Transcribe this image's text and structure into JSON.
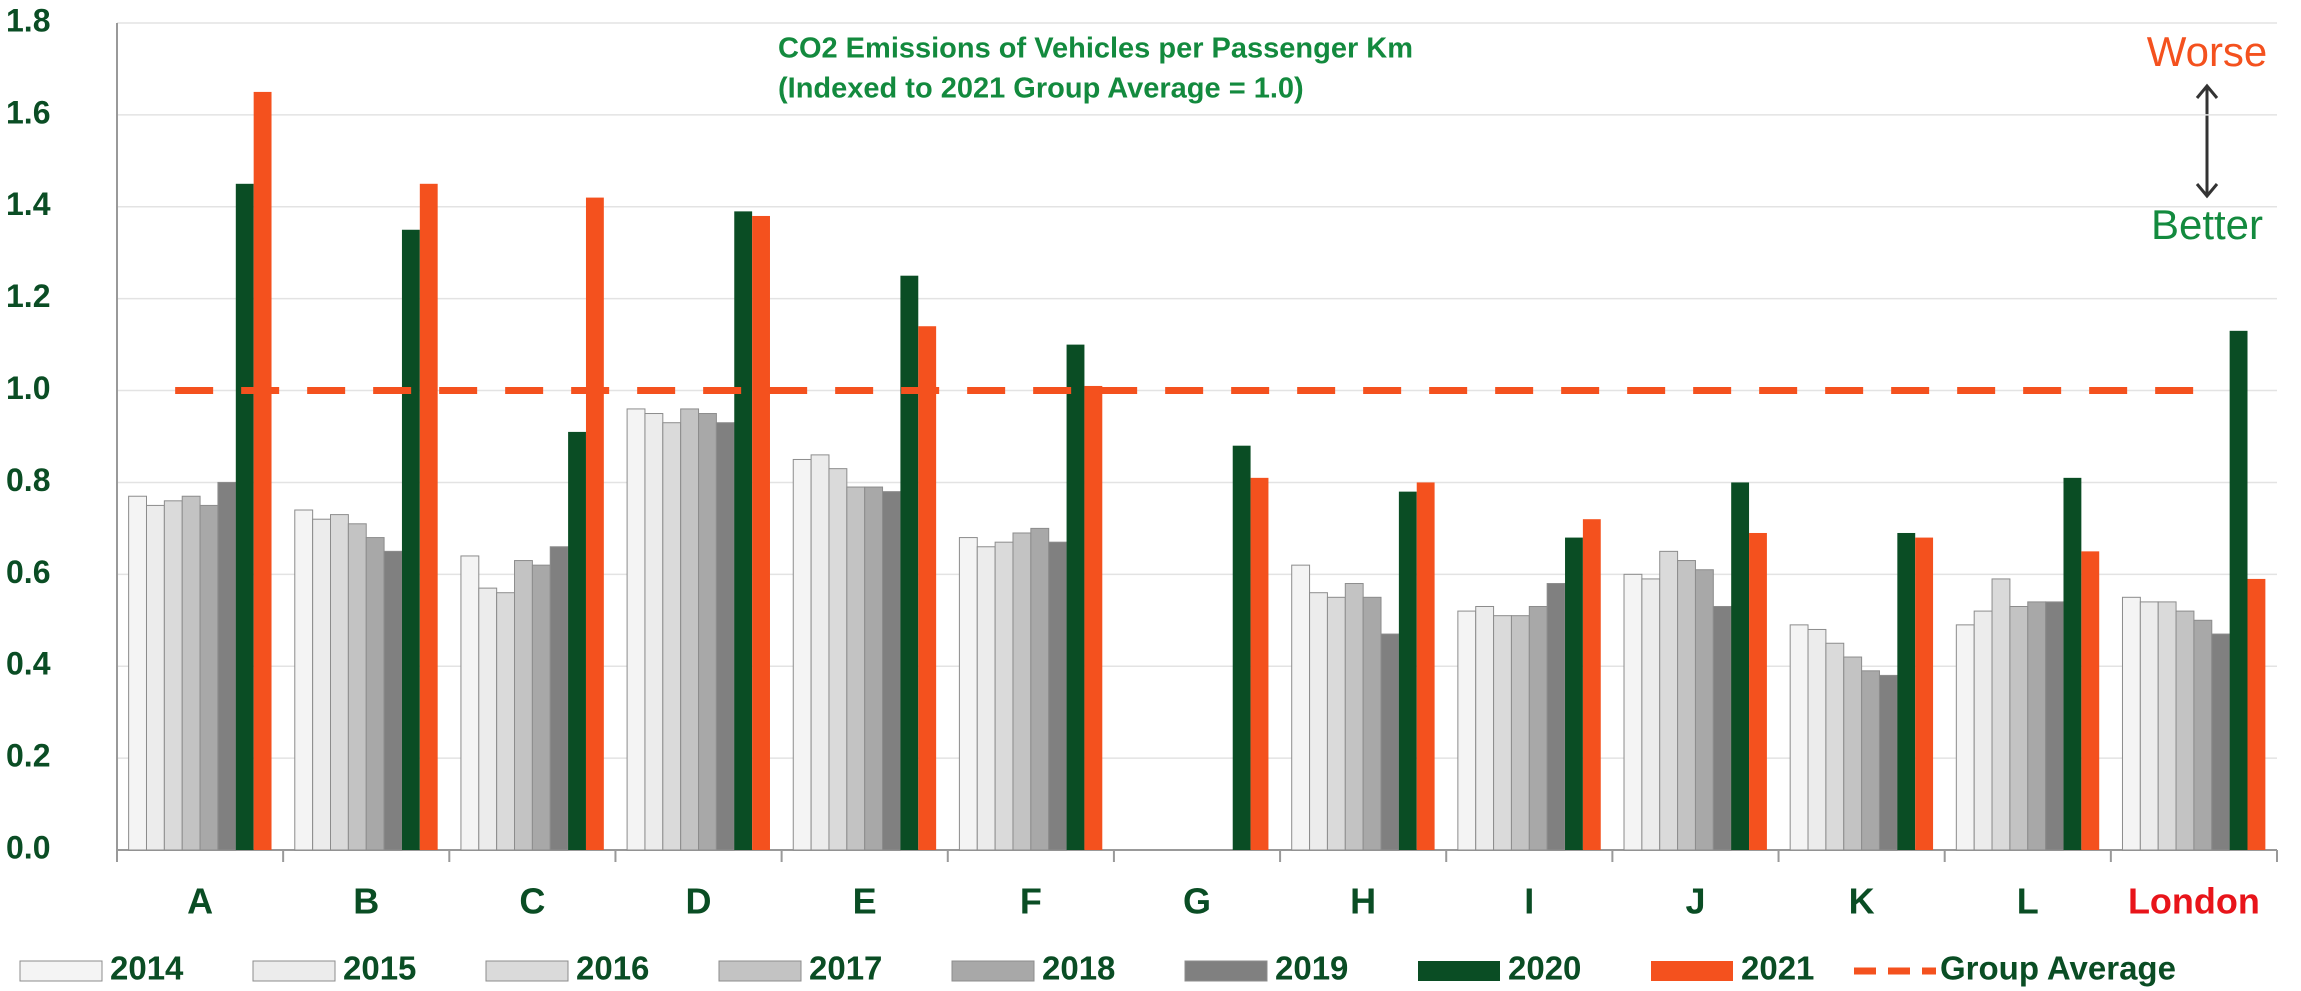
{
  "chart_data": {
    "type": "bar",
    "subtitle": [
      "CO2 Emissions of Vehicles per Passenger Km",
      "(Indexed to 2021 Group Average = 1.0)"
    ],
    "annotations": {
      "worse": "Worse",
      "better": "Better"
    },
    "categories": [
      "A",
      "B",
      "C",
      "D",
      "E",
      "F",
      "G",
      "H",
      "I",
      "J",
      "K",
      "L",
      "London"
    ],
    "category_label_colors": [
      "#0a4d24",
      "#0a4d24",
      "#0a4d24",
      "#0a4d24",
      "#0a4d24",
      "#0a4d24",
      "#0a4d24",
      "#0a4d24",
      "#0a4d24",
      "#0a4d24",
      "#0a4d24",
      "#0a4d24",
      "#e8141a"
    ],
    "series": [
      {
        "name": "2014",
        "color": "#f4f4f4",
        "values": [
          0.77,
          0.74,
          0.64,
          0.96,
          0.85,
          0.68,
          null,
          0.62,
          0.52,
          0.6,
          0.49,
          0.49,
          0.55
        ]
      },
      {
        "name": "2015",
        "color": "#ececec",
        "values": [
          0.75,
          0.72,
          0.57,
          0.95,
          0.86,
          0.66,
          null,
          0.56,
          0.53,
          0.59,
          0.48,
          0.52,
          0.54
        ]
      },
      {
        "name": "2016",
        "color": "#dadada",
        "values": [
          0.76,
          0.73,
          0.56,
          0.93,
          0.83,
          0.67,
          null,
          0.55,
          0.51,
          0.65,
          0.45,
          0.59,
          0.54
        ]
      },
      {
        "name": "2017",
        "color": "#c3c3c3",
        "values": [
          0.77,
          0.71,
          0.63,
          0.96,
          0.79,
          0.69,
          null,
          0.58,
          0.51,
          0.63,
          0.42,
          0.53,
          0.52
        ]
      },
      {
        "name": "2018",
        "color": "#a8a8a8",
        "values": [
          0.75,
          0.68,
          0.62,
          0.95,
          0.79,
          0.7,
          null,
          0.55,
          0.53,
          0.61,
          0.39,
          0.54,
          0.5
        ]
      },
      {
        "name": "2019",
        "color": "#808080",
        "values": [
          0.8,
          0.65,
          0.66,
          0.93,
          0.78,
          0.67,
          null,
          0.47,
          0.58,
          0.53,
          0.38,
          0.54,
          0.47
        ]
      },
      {
        "name": "2020",
        "color": "#0a4d24",
        "values": [
          1.45,
          1.35,
          0.91,
          1.39,
          1.25,
          1.1,
          0.88,
          0.78,
          0.68,
          0.8,
          0.69,
          0.81,
          1.13
        ]
      },
      {
        "name": "2021",
        "color": "#f4511e",
        "values": [
          1.65,
          1.45,
          1.42,
          1.38,
          1.14,
          1.01,
          0.81,
          0.8,
          0.72,
          0.69,
          0.68,
          0.65,
          0.59
        ]
      }
    ],
    "group_average": {
      "name": "Group Average",
      "value": 1.0,
      "color": "#f4511e"
    },
    "ylim": [
      0,
      1.8
    ],
    "yticks": [
      {
        "value": 0,
        "label": "0.0"
      },
      0.2,
      0.4,
      0.6,
      0.8,
      {
        "value": 1,
        "label": "1.0"
      },
      1.2,
      1.4,
      1.6,
      1.8
    ],
    "grid": true
  }
}
